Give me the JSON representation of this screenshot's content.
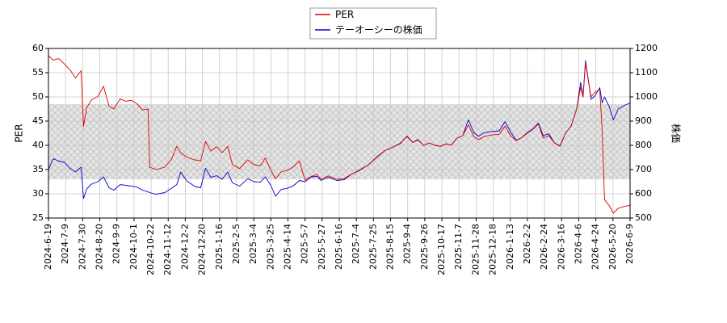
{
  "chart_data": {
    "type": "line",
    "title": "",
    "xlabel": "",
    "ylabel_left": "PER",
    "ylabel_right": "株価",
    "ylim_left": [
      25,
      60
    ],
    "ylim_right": [
      500,
      1200
    ],
    "yticks_left": [
      "25",
      "30",
      "35",
      "40",
      "45",
      "50",
      "55",
      "60"
    ],
    "yticks_right": [
      "500",
      "600",
      "700",
      "800",
      "900",
      "1000",
      "1100",
      "1200"
    ],
    "x_start": "2024-06-19",
    "x_end": "2026-06-19",
    "xtick_labels": [
      "2024-6-19",
      "2024-7-9",
      "2024-7-30",
      "2024-8-20",
      "2024-9-9",
      "2024-10-1",
      "2024-10-22",
      "2024-11-12",
      "2024-12-2",
      "2024-12-20",
      "2025-1-16",
      "2025-2-5",
      "2025-3-4",
      "2025-3-25",
      "2025-4-14",
      "2025-5-7",
      "2025-5-27",
      "2025-6-16",
      "2025-7-4",
      "2025-7-25",
      "2025-8-15",
      "2025-9-4",
      "2025-9-26",
      "2025-10-17",
      "2025-11-7",
      "2025-11-28",
      "2025-12-18",
      "2026-1-13",
      "2026-2-2",
      "2026-2-24",
      "2026-3-16",
      "2026-4-6",
      "2026-4-24",
      "2026-5-20",
      "2026-6-9"
    ],
    "grid": true,
    "shaded_band_left": [
      33,
      48.5
    ],
    "legend_position": "top-center",
    "series": [
      {
        "name": "PER",
        "axis": "left",
        "color": "#dd0000",
        "points": [
          [
            "2024-06-19",
            58.5
          ],
          [
            "2024-06-25",
            57.6
          ],
          [
            "2024-07-02",
            57.9
          ],
          [
            "2024-07-09",
            56.8
          ],
          [
            "2024-07-16",
            55.6
          ],
          [
            "2024-07-23",
            53.9
          ],
          [
            "2024-07-30",
            55.4
          ],
          [
            "2024-08-02",
            43.9
          ],
          [
            "2024-08-06",
            47.8
          ],
          [
            "2024-08-12",
            49.4
          ],
          [
            "2024-08-20",
            50.1
          ],
          [
            "2024-08-27",
            52.2
          ],
          [
            "2024-09-03",
            48.1
          ],
          [
            "2024-09-09",
            47.5
          ],
          [
            "2024-09-17",
            49.6
          ],
          [
            "2024-09-24",
            49.1
          ],
          [
            "2024-10-01",
            49.3
          ],
          [
            "2024-10-08",
            48.6
          ],
          [
            "2024-10-15",
            47.3
          ],
          [
            "2024-10-22",
            47.5
          ],
          [
            "2024-10-24",
            35.5
          ],
          [
            "2024-11-01",
            35.0
          ],
          [
            "2024-11-12",
            35.5
          ],
          [
            "2024-11-20",
            37.0
          ],
          [
            "2024-11-27",
            39.8
          ],
          [
            "2024-12-02",
            38.5
          ],
          [
            "2024-12-10",
            37.5
          ],
          [
            "2024-12-20",
            37.0
          ],
          [
            "2024-12-27",
            36.8
          ],
          [
            "2025-01-02",
            40.8
          ],
          [
            "2025-01-09",
            38.8
          ],
          [
            "2025-01-16",
            39.7
          ],
          [
            "2025-01-23",
            38.5
          ],
          [
            "2025-01-30",
            39.8
          ],
          [
            "2025-02-05",
            36.0
          ],
          [
            "2025-02-14",
            35.2
          ],
          [
            "2025-02-24",
            37.0
          ],
          [
            "2025-03-04",
            36.0
          ],
          [
            "2025-03-12",
            35.8
          ],
          [
            "2025-03-18",
            37.4
          ],
          [
            "2025-03-25",
            34.9
          ],
          [
            "2025-03-31",
            33.1
          ],
          [
            "2025-04-07",
            34.5
          ],
          [
            "2025-04-14",
            34.8
          ],
          [
            "2025-04-22",
            35.5
          ],
          [
            "2025-04-30",
            36.8
          ],
          [
            "2025-05-07",
            32.8
          ],
          [
            "2025-05-15",
            33.6
          ],
          [
            "2025-05-22",
            34.0
          ],
          [
            "2025-05-27",
            33.0
          ],
          [
            "2025-06-05",
            33.7
          ],
          [
            "2025-06-16",
            33.0
          ],
          [
            "2025-06-25",
            33.1
          ],
          [
            "2025-07-04",
            34.0
          ],
          [
            "2025-07-15",
            35.0
          ],
          [
            "2025-07-25",
            35.9
          ],
          [
            "2025-08-05",
            37.5
          ],
          [
            "2025-08-15",
            38.9
          ],
          [
            "2025-08-25",
            39.6
          ],
          [
            "2025-09-04",
            40.5
          ],
          [
            "2025-09-12",
            41.8
          ],
          [
            "2025-09-19",
            40.6
          ],
          [
            "2025-09-26",
            41.2
          ],
          [
            "2025-10-03",
            40.0
          ],
          [
            "2025-10-10",
            40.5
          ],
          [
            "2025-10-17",
            40.0
          ],
          [
            "2025-10-24",
            39.8
          ],
          [
            "2025-10-31",
            40.3
          ],
          [
            "2025-11-07",
            40.1
          ],
          [
            "2025-11-14",
            41.5
          ],
          [
            "2025-11-21",
            42.0
          ],
          [
            "2025-11-28",
            44.2
          ],
          [
            "2025-12-05",
            41.8
          ],
          [
            "2025-12-11",
            41.2
          ],
          [
            "2025-12-18",
            41.8
          ],
          [
            "2025-12-25",
            42.1
          ],
          [
            "2026-01-06",
            42.3
          ],
          [
            "2026-01-13",
            44.0
          ],
          [
            "2026-01-20",
            42.0
          ],
          [
            "2026-01-27",
            41.0
          ],
          [
            "2026-02-02",
            41.5
          ],
          [
            "2026-02-10",
            42.5
          ],
          [
            "2026-02-17",
            43.3
          ],
          [
            "2026-02-24",
            44.4
          ],
          [
            "2026-03-02",
            41.5
          ],
          [
            "2026-03-09",
            42.0
          ],
          [
            "2026-03-16",
            40.5
          ],
          [
            "2026-03-23",
            39.8
          ],
          [
            "2026-03-30",
            42.5
          ],
          [
            "2026-04-06",
            44.0
          ],
          [
            "2026-04-13",
            47.5
          ],
          [
            "2026-04-18",
            52.0
          ],
          [
            "2026-04-21",
            50.0
          ],
          [
            "2026-04-24",
            57.0
          ],
          [
            "2026-04-28",
            53.0
          ],
          [
            "2026-05-01",
            50.0
          ],
          [
            "2026-05-06",
            51.0
          ],
          [
            "2026-05-12",
            51.5
          ],
          [
            "2026-05-15",
            43.0
          ],
          [
            "2026-05-18",
            28.8
          ],
          [
            "2026-05-24",
            27.5
          ],
          [
            "2026-05-29",
            26.0
          ],
          [
            "2026-06-04",
            27.0
          ],
          [
            "2026-06-12",
            27.4
          ],
          [
            "2026-06-19",
            27.6
          ]
        ]
      },
      {
        "name": "テーオーシーの株価",
        "axis": "right",
        "color": "#0000cc",
        "points": [
          [
            "2024-06-19",
            700
          ],
          [
            "2024-06-25",
            745
          ],
          [
            "2024-07-02",
            735
          ],
          [
            "2024-07-09",
            730
          ],
          [
            "2024-07-16",
            705
          ],
          [
            "2024-07-23",
            690
          ],
          [
            "2024-07-30",
            710
          ],
          [
            "2024-08-02",
            580
          ],
          [
            "2024-08-06",
            620
          ],
          [
            "2024-08-12",
            640
          ],
          [
            "2024-08-20",
            650
          ],
          [
            "2024-08-27",
            670
          ],
          [
            "2024-09-03",
            625
          ],
          [
            "2024-09-09",
            615
          ],
          [
            "2024-09-17",
            638
          ],
          [
            "2024-09-24",
            635
          ],
          [
            "2024-10-01",
            632
          ],
          [
            "2024-10-08",
            628
          ],
          [
            "2024-10-15",
            615
          ],
          [
            "2024-10-22",
            608
          ],
          [
            "2024-10-24",
            605
          ],
          [
            "2024-11-01",
            598
          ],
          [
            "2024-11-12",
            605
          ],
          [
            "2024-11-20",
            622
          ],
          [
            "2024-11-27",
            638
          ],
          [
            "2024-12-02",
            690
          ],
          [
            "2024-12-10",
            652
          ],
          [
            "2024-12-20",
            630
          ],
          [
            "2024-12-27",
            625
          ],
          [
            "2025-01-02",
            705
          ],
          [
            "2025-01-09",
            668
          ],
          [
            "2025-01-16",
            675
          ],
          [
            "2025-01-23",
            660
          ],
          [
            "2025-01-30",
            690
          ],
          [
            "2025-02-05",
            645
          ],
          [
            "2025-02-14",
            632
          ],
          [
            "2025-02-24",
            662
          ],
          [
            "2025-03-04",
            650
          ],
          [
            "2025-03-12",
            648
          ],
          [
            "2025-03-18",
            670
          ],
          [
            "2025-03-25",
            635
          ],
          [
            "2025-03-31",
            590
          ],
          [
            "2025-04-07",
            618
          ],
          [
            "2025-04-14",
            622
          ],
          [
            "2025-04-22",
            632
          ],
          [
            "2025-04-30",
            655
          ],
          [
            "2025-05-07",
            650
          ],
          [
            "2025-05-15",
            670
          ],
          [
            "2025-05-22",
            672
          ],
          [
            "2025-05-27",
            655
          ],
          [
            "2025-06-05",
            668
          ],
          [
            "2025-06-16",
            655
          ],
          [
            "2025-06-25",
            658
          ],
          [
            "2025-07-04",
            680
          ],
          [
            "2025-07-15",
            698
          ],
          [
            "2025-07-25",
            718
          ],
          [
            "2025-08-05",
            752
          ],
          [
            "2025-08-15",
            778
          ],
          [
            "2025-08-25",
            792
          ],
          [
            "2025-09-04",
            808
          ],
          [
            "2025-09-12",
            838
          ],
          [
            "2025-09-19",
            812
          ],
          [
            "2025-09-26",
            822
          ],
          [
            "2025-10-03",
            800
          ],
          [
            "2025-10-10",
            810
          ],
          [
            "2025-10-17",
            800
          ],
          [
            "2025-10-24",
            796
          ],
          [
            "2025-10-31",
            806
          ],
          [
            "2025-11-07",
            802
          ],
          [
            "2025-11-14",
            830
          ],
          [
            "2025-11-21",
            840
          ],
          [
            "2025-11-28",
            905
          ],
          [
            "2025-12-05",
            852
          ],
          [
            "2025-12-11",
            838
          ],
          [
            "2025-12-18",
            852
          ],
          [
            "2025-12-25",
            856
          ],
          [
            "2026-01-06",
            860
          ],
          [
            "2026-01-13",
            898
          ],
          [
            "2026-01-20",
            855
          ],
          [
            "2026-01-27",
            822
          ],
          [
            "2026-02-02",
            830
          ],
          [
            "2026-02-10",
            852
          ],
          [
            "2026-02-17",
            868
          ],
          [
            "2026-02-24",
            892
          ],
          [
            "2026-03-02",
            840
          ],
          [
            "2026-03-09",
            848
          ],
          [
            "2026-03-16",
            810
          ],
          [
            "2026-03-23",
            798
          ],
          [
            "2026-03-30",
            850
          ],
          [
            "2026-04-06",
            880
          ],
          [
            "2026-04-13",
            950
          ],
          [
            "2026-04-18",
            1060
          ],
          [
            "2026-04-21",
            1000
          ],
          [
            "2026-04-24",
            1150
          ],
          [
            "2026-04-28",
            1062
          ],
          [
            "2026-05-01",
            990
          ],
          [
            "2026-05-06",
            1005
          ],
          [
            "2026-05-12",
            1038
          ],
          [
            "2026-05-15",
            975
          ],
          [
            "2026-05-18",
            1000
          ],
          [
            "2026-05-24",
            958
          ],
          [
            "2026-05-29",
            905
          ],
          [
            "2026-06-04",
            950
          ],
          [
            "2026-06-12",
            965
          ],
          [
            "2026-06-19",
            975
          ]
        ]
      }
    ]
  }
}
